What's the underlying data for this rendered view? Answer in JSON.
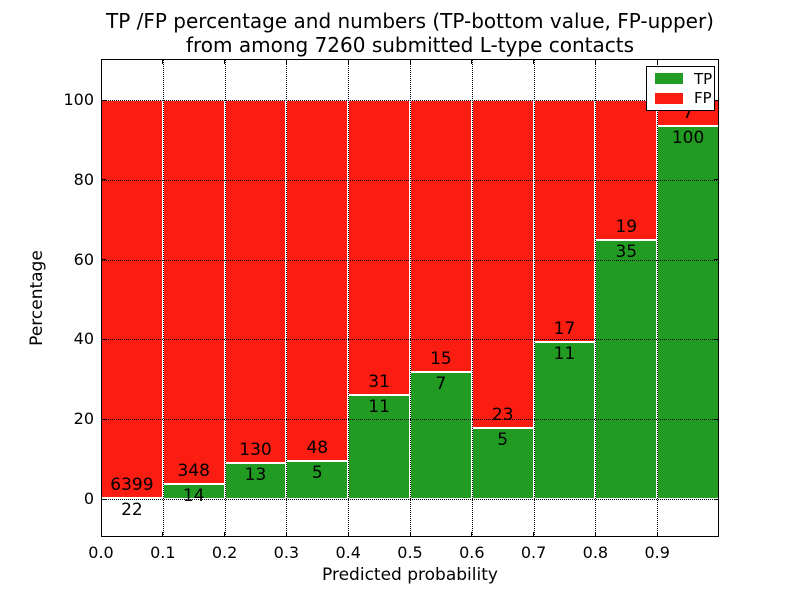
{
  "title": {
    "line1": "TP /FP percentage and numbers (TP-bottom value, FP-upper)",
    "line2": "from among 7260 submitted L-type contacts"
  },
  "axes": {
    "xlabel": "Predicted probability",
    "ylabel": "Percentage",
    "x_ticks": [
      "0.0",
      "0.1",
      "0.2",
      "0.3",
      "0.4",
      "0.5",
      "0.6",
      "0.7",
      "0.8",
      "0.9"
    ],
    "y_ticks": [
      "0",
      "20",
      "40",
      "60",
      "80",
      "100"
    ]
  },
  "legend": [
    {
      "label": "TP",
      "color": "#229b22"
    },
    {
      "label": "FP",
      "color": "#fc1d12"
    }
  ],
  "chart_data": {
    "type": "bar",
    "stacked": true,
    "normalization": "each bin scaled to TP+FP = 100%",
    "title": "TP /FP percentage and numbers (TP-bottom value, FP-upper) from among 7260 submitted L-type contacts",
    "xlabel": "Predicted probability",
    "ylabel": "Percentage",
    "categories": [
      "0.0-0.1",
      "0.1-0.2",
      "0.2-0.3",
      "0.3-0.4",
      "0.4-0.5",
      "0.5-0.6",
      "0.6-0.7",
      "0.7-0.8",
      "0.8-0.9",
      "0.9-1.0"
    ],
    "series": [
      {
        "name": "TP",
        "color": "#229b22",
        "counts": [
          22,
          14,
          13,
          5,
          11,
          7,
          5,
          11,
          35,
          100
        ]
      },
      {
        "name": "FP",
        "color": "#fc1d12",
        "counts": [
          6399,
          348,
          130,
          48,
          31,
          15,
          23,
          17,
          19,
          7
        ]
      }
    ],
    "tp_percent_by_bin": [
      0.34,
      3.87,
      9.09,
      9.43,
      26.19,
      31.82,
      17.86,
      39.29,
      64.81,
      93.46
    ],
    "total_contacts": 7260,
    "xlim": [
      0.0,
      1.0
    ],
    "ylim": [
      -10,
      110
    ],
    "x_ticks": [
      "0.0",
      "0.1",
      "0.2",
      "0.3",
      "0.4",
      "0.5",
      "0.6",
      "0.7",
      "0.8",
      "0.9"
    ],
    "y_ticks": [
      "0",
      "20",
      "40",
      "60",
      "80",
      "100"
    ],
    "grid": "dotted, drawn above bars",
    "bar_edge_color": "#ffffff",
    "legend_position": "upper right",
    "label_rule": "FP count printed above the TP/FP boundary, TP count printed below it"
  }
}
